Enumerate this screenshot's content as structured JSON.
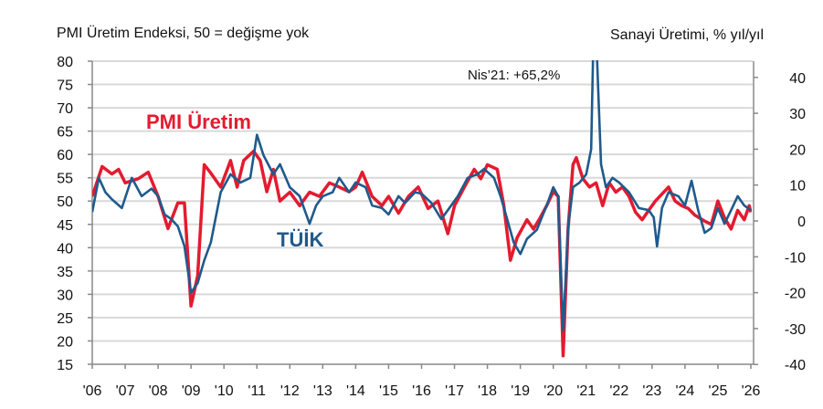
{
  "chart_data": {
    "type": "line",
    "left_axis_title": "PMI Üretim Endeksi, 50 = değişme yok",
    "right_axis_title": "Sanayi Üretimi, % yıl/yıl",
    "annotation": "Nis’21: +65,2%",
    "left_ylim": [
      15,
      80
    ],
    "right_ylim": [
      -40,
      44.6
    ],
    "left_ticks": [
      "80",
      "75",
      "70",
      "65",
      "60",
      "55",
      "50",
      "45",
      "40",
      "35",
      "30",
      "25",
      "20",
      "15"
    ],
    "right_ticks": [
      "40",
      "30",
      "20",
      "10",
      "0",
      "-10",
      "-20",
      "-30",
      "-40"
    ],
    "x_ticks": [
      "'06",
      "'07",
      "'08",
      "'09",
      "'10",
      "'11",
      "'12",
      "'13",
      "'14",
      "'15",
      "'16",
      "'17",
      "'18",
      "'19",
      "'20",
      "'21",
      "'22",
      "'23",
      "'24",
      "'25",
      "'26"
    ],
    "xlim": [
      2006,
      2026
    ],
    "grid": true,
    "colors": {
      "pmi": "#e31b2f",
      "tuik": "#1f5a8c"
    },
    "series": [
      {
        "name": "PMI Üretim",
        "axis": "left",
        "x": [
          2006.0,
          2006.3,
          2006.6,
          2006.8,
          2007.0,
          2007.4,
          2007.7,
          2008.0,
          2008.3,
          2008.6,
          2008.8,
          2009.0,
          2009.2,
          2009.4,
          2009.6,
          2009.9,
          2010.2,
          2010.4,
          2010.6,
          2010.9,
          2011.1,
          2011.3,
          2011.5,
          2011.7,
          2012.0,
          2012.3,
          2012.6,
          2012.9,
          2013.2,
          2013.5,
          2013.8,
          2014.0,
          2014.2,
          2014.5,
          2014.8,
          2015.0,
          2015.3,
          2015.6,
          2015.9,
          2016.2,
          2016.5,
          2016.8,
          2017.0,
          2017.3,
          2017.6,
          2017.8,
          2018.0,
          2018.3,
          2018.5,
          2018.7,
          2018.9,
          2019.2,
          2019.4,
          2019.6,
          2019.8,
          2020.0,
          2020.15,
          2020.3,
          2020.45,
          2020.6,
          2020.7,
          2020.9,
          2021.1,
          2021.3,
          2021.5,
          2021.7,
          2021.9,
          2022.1,
          2022.3,
          2022.5,
          2022.7,
          2022.9,
          2023.1,
          2023.3,
          2023.5,
          2023.7,
          2023.9,
          2024.1,
          2024.3,
          2024.6,
          2024.8,
          2025.0,
          2025.2,
          2025.4,
          2025.6,
          2025.8,
          2025.95,
          2026.0
        ],
        "values": [
          51,
          57.4,
          55.8,
          56.8,
          53.9,
          54.8,
          56.2,
          51,
          44.1,
          49.6,
          49.6,
          27.5,
          34,
          57.8,
          56,
          53,
          58.7,
          53,
          58.7,
          60.7,
          58.7,
          52,
          56.8,
          50,
          51.9,
          49,
          51.9,
          51,
          53.9,
          53,
          52,
          53,
          56.2,
          51,
          49,
          51,
          47.4,
          51,
          53,
          48.4,
          50,
          43,
          49,
          53,
          56.8,
          54.8,
          57.8,
          56.8,
          49,
          37.3,
          42.1,
          46,
          44,
          46.4,
          49,
          52,
          51,
          16.8,
          44,
          57.8,
          59.3,
          54.8,
          53,
          53.9,
          49,
          53.9,
          51.9,
          53,
          51,
          47.6,
          46,
          48,
          50,
          51.5,
          53,
          50,
          49,
          48.4,
          47,
          45.7,
          45,
          50,
          46.4,
          44,
          48,
          46,
          49,
          47.6
        ]
      },
      {
        "name": "TÜİK",
        "axis": "right",
        "x": [
          2006.0,
          2006.2,
          2006.4,
          2006.6,
          2006.9,
          2007.2,
          2007.5,
          2007.8,
          2008.0,
          2008.2,
          2008.4,
          2008.6,
          2008.8,
          2009.0,
          2009.2,
          2009.4,
          2009.6,
          2009.9,
          2010.2,
          2010.5,
          2010.8,
          2011.0,
          2011.2,
          2011.5,
          2011.7,
          2012.0,
          2012.3,
          2012.6,
          2012.8,
          2013.0,
          2013.3,
          2013.5,
          2013.8,
          2014.0,
          2014.3,
          2014.5,
          2014.8,
          2015.0,
          2015.3,
          2015.5,
          2015.8,
          2016.0,
          2016.3,
          2016.6,
          2016.8,
          2017.1,
          2017.4,
          2017.7,
          2017.9,
          2018.2,
          2018.4,
          2018.6,
          2018.8,
          2019.0,
          2019.2,
          2019.5,
          2019.8,
          2020.0,
          2020.15,
          2020.3,
          2020.45,
          2020.6,
          2020.8,
          2021.0,
          2021.15,
          2021.25,
          2021.35,
          2021.45,
          2021.6,
          2021.8,
          2022.0,
          2022.3,
          2022.6,
          2022.9,
          2023.05,
          2023.15,
          2023.3,
          2023.5,
          2023.8,
          2024.0,
          2024.2,
          2024.4,
          2024.6,
          2024.8,
          2025.0,
          2025.2,
          2025.4,
          2025.6,
          2025.8,
          2026.0
        ],
        "values": [
          2.5,
          12,
          8,
          6,
          3.6,
          12,
          6.9,
          9,
          6.9,
          1.8,
          0.5,
          -1.5,
          -7,
          -20,
          -17.3,
          -11,
          -6,
          8,
          13,
          10.7,
          12,
          24,
          18.3,
          13,
          15.8,
          9.4,
          6.9,
          -0.8,
          4.3,
          6.9,
          8,
          12,
          8,
          10.7,
          9.4,
          4.3,
          3.6,
          1.8,
          6.9,
          5,
          8,
          7.6,
          5,
          0.5,
          3,
          6.9,
          12,
          13,
          14.5,
          12,
          6.9,
          0.5,
          -6,
          -9.2,
          -5,
          -2.5,
          4.3,
          9.4,
          6.9,
          -30.5,
          -2,
          9.4,
          10.7,
          13,
          20,
          65.2,
          40,
          15.8,
          9.4,
          12,
          10.7,
          8,
          3.6,
          3,
          1,
          -7.1,
          3.6,
          8,
          6.9,
          4.3,
          11.2,
          3,
          -3.3,
          -2,
          3.6,
          -0.8,
          3,
          6.9,
          4.3,
          3
        ]
      }
    ]
  }
}
